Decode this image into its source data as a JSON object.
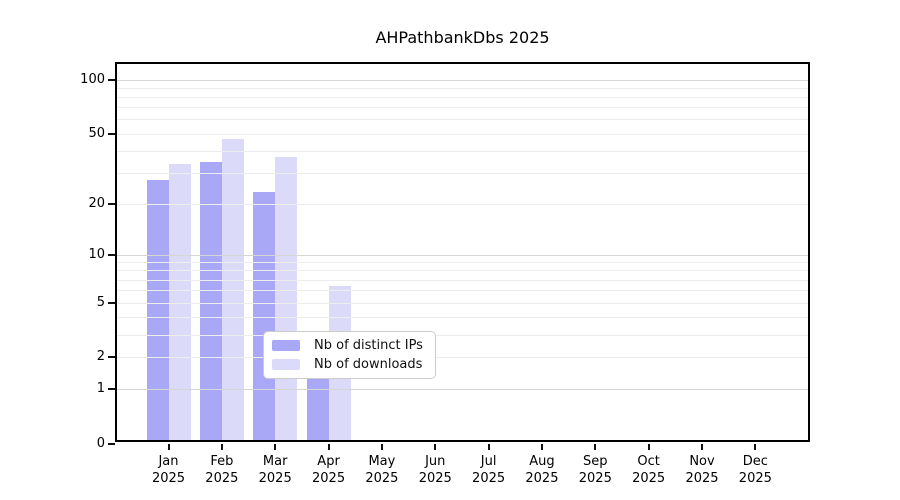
{
  "title": "AHPathbankDbs 2025",
  "chart_data": {
    "type": "bar",
    "title": "AHPathbankDbs 2025",
    "x_categories": [
      "Jan",
      "Feb",
      "Mar",
      "Apr",
      "May",
      "Jun",
      "Jul",
      "Aug",
      "Sep",
      "Oct",
      "Nov",
      "Dec"
    ],
    "x_year_label": "2025",
    "series": [
      {
        "name": "Nb of distinct IPs",
        "color": "#a8a8f6",
        "values": [
          26,
          33,
          22,
          3,
          0,
          0,
          0,
          0,
          0,
          0,
          0,
          0
        ]
      },
      {
        "name": "Nb of downloads",
        "color": "#dbdbf9",
        "values": [
          32,
          44,
          35,
          6,
          0,
          0,
          0,
          0,
          0,
          0,
          0,
          0
        ]
      }
    ],
    "y_axis": {
      "scale": "symlog",
      "ticks": [
        0,
        1,
        2,
        5,
        10,
        20,
        50,
        100
      ],
      "max": 122,
      "major_gridlines": [
        1,
        10,
        100
      ],
      "minor_gridlines": [
        2,
        3,
        4,
        5,
        6,
        7,
        8,
        9,
        20,
        30,
        40,
        50,
        60,
        70,
        80,
        90
      ]
    },
    "legend": {
      "entries": [
        "Nb of distinct IPs",
        "Nb of downloads"
      ],
      "position": "bottom-center-inside"
    },
    "grid": true
  },
  "colors": {
    "major_grid": "#d6d6d6",
    "minor_grid": "#ededed",
    "axis": "#000000",
    "text": "#000000",
    "background": "#ffffff"
  }
}
